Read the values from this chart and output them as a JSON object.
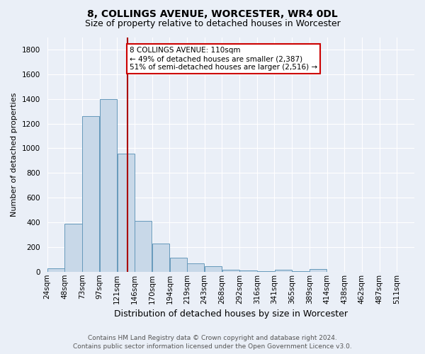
{
  "title": "8, COLLINGS AVENUE, WORCESTER, WR4 0DL",
  "subtitle": "Size of property relative to detached houses in Worcester",
  "xlabel": "Distribution of detached houses by size in Worcester",
  "ylabel": "Number of detached properties",
  "footer_line1": "Contains HM Land Registry data © Crown copyright and database right 2024.",
  "footer_line2": "Contains public sector information licensed under the Open Government Licence v3.0.",
  "bar_labels": [
    "24sqm",
    "48sqm",
    "73sqm",
    "97sqm",
    "121sqm",
    "146sqm",
    "170sqm",
    "194sqm",
    "219sqm",
    "243sqm",
    "268sqm",
    "292sqm",
    "316sqm",
    "341sqm",
    "365sqm",
    "389sqm",
    "414sqm",
    "438sqm",
    "462sqm",
    "487sqm",
    "511sqm"
  ],
  "bar_values": [
    25,
    390,
    1260,
    1400,
    955,
    410,
    228,
    113,
    65,
    42,
    15,
    8,
    5,
    14,
    2,
    20,
    0,
    0,
    0,
    0,
    0
  ],
  "bar_color": "#c8d8e8",
  "bar_edge_color": "#6699bb",
  "property_line_x": 110,
  "bin_size": 24,
  "n_bins": 21,
  "red_line_color": "#aa0000",
  "annotation_text_line1": "8 COLLINGS AVENUE: 110sqm",
  "annotation_text_line2": "← 49% of detached houses are smaller (2,387)",
  "annotation_text_line3": "51% of semi-detached houses are larger (2,516) →",
  "annotation_box_color": "#ffffff",
  "annotation_box_edge": "#cc0000",
  "ylim": [
    0,
    1900
  ],
  "yticks": [
    0,
    200,
    400,
    600,
    800,
    1000,
    1200,
    1400,
    1600,
    1800
  ],
  "bg_color": "#eaeff7",
  "plot_bg_color": "#eaeff7",
  "grid_color": "#ffffff",
  "title_fontsize": 10,
  "subtitle_fontsize": 9,
  "xlabel_fontsize": 9,
  "ylabel_fontsize": 8,
  "tick_fontsize": 7.5,
  "annotation_fontsize": 7.5,
  "footer_fontsize": 6.5
}
